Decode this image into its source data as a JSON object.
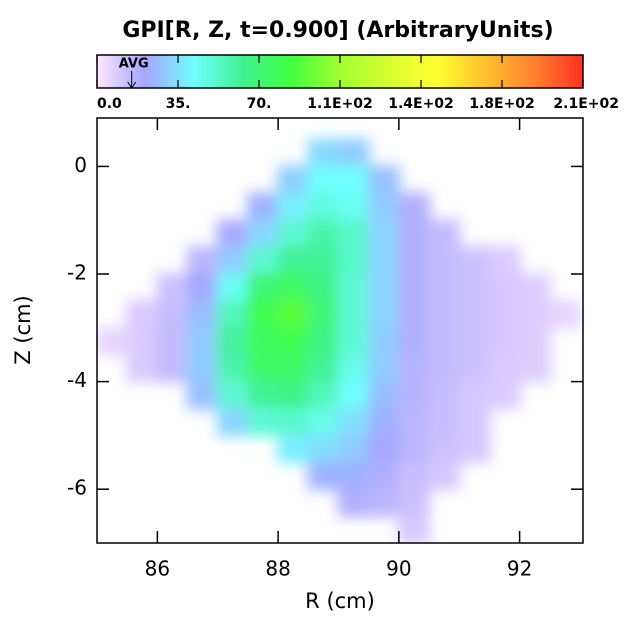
{
  "chart_data": {
    "type": "heatmap",
    "title": "GPI[R, Z, t=0.900] (ArbitraryUnits)",
    "x_label": "R (cm)",
    "y_label": "Z (cm)",
    "xlim": [
      85.0,
      93.05
    ],
    "ylim": [
      -7.0,
      0.9
    ],
    "xticks": [
      86,
      88,
      90,
      92
    ],
    "yticks": [
      0,
      -2,
      -4,
      -6
    ],
    "x": [
      85.25,
      85.75,
      86.25,
      86.75,
      87.25,
      87.75,
      88.25,
      88.75,
      89.25,
      89.75,
      90.25,
      90.75,
      91.25,
      91.75,
      92.25,
      92.75
    ],
    "y": [
      0.25,
      -0.25,
      -0.75,
      -1.25,
      -1.75,
      -2.25,
      -2.75,
      -3.25,
      -3.75,
      -4.25,
      -4.75,
      -5.25,
      -5.75,
      -6.25,
      -6.75
    ],
    "z": [
      [
        null,
        null,
        null,
        null,
        null,
        null,
        null,
        33,
        30,
        null,
        null,
        null,
        null,
        null,
        null,
        null
      ],
      [
        null,
        null,
        null,
        null,
        null,
        null,
        30,
        42,
        42,
        27,
        null,
        null,
        null,
        null,
        null,
        null
      ],
      [
        null,
        null,
        null,
        null,
        null,
        24,
        38,
        48,
        44,
        30,
        18,
        null,
        null,
        null,
        null,
        null
      ],
      [
        null,
        null,
        null,
        null,
        20,
        32,
        50,
        58,
        52,
        32,
        18,
        14,
        null,
        null,
        null,
        null
      ],
      [
        null,
        null,
        null,
        16,
        30,
        50,
        62,
        62,
        52,
        32,
        18,
        14,
        12,
        9,
        null,
        null
      ],
      [
        null,
        null,
        12,
        21,
        44,
        70,
        76,
        66,
        50,
        32,
        18,
        14,
        12,
        10,
        8,
        null
      ],
      [
        null,
        9,
        13,
        27,
        55,
        80,
        90,
        70,
        50,
        32,
        18,
        14,
        12,
        10,
        8,
        6
      ],
      [
        6,
        9,
        14,
        30,
        60,
        76,
        80,
        66,
        50,
        30,
        18,
        14,
        12,
        10,
        8,
        null
      ],
      [
        null,
        9,
        14,
        30,
        58,
        74,
        74,
        62,
        46,
        30,
        17,
        14,
        12,
        9,
        8,
        null
      ],
      [
        null,
        null,
        null,
        27,
        50,
        62,
        66,
        55,
        42,
        27,
        17,
        13,
        10,
        9,
        null,
        null
      ],
      [
        null,
        null,
        null,
        null,
        32,
        50,
        52,
        46,
        35,
        24,
        16,
        13,
        10,
        null,
        null,
        null
      ],
      [
        null,
        null,
        null,
        null,
        null,
        null,
        38,
        35,
        30,
        21,
        16,
        12,
        10,
        null,
        null,
        null
      ],
      [
        null,
        null,
        null,
        null,
        null,
        null,
        null,
        24,
        24,
        18,
        13,
        10,
        null,
        null,
        null,
        null
      ],
      [
        null,
        null,
        null,
        null,
        null,
        null,
        null,
        null,
        18,
        16,
        12,
        null,
        null,
        null,
        null,
        null
      ],
      [
        null,
        null,
        null,
        null,
        null,
        null,
        null,
        null,
        null,
        null,
        10,
        null,
        null,
        null,
        null,
        null
      ]
    ],
    "clim": [
      0,
      210
    ],
    "cticks": [
      0,
      35,
      70,
      {
        "value": 105,
        "label": "1.1E+02"
      },
      {
        "value": 140,
        "label": "1.4E+02"
      },
      {
        "value": 175,
        "label": "1.8E+02"
      },
      {
        "value": 210,
        "label": "2.1E+02"
      }
    ],
    "ctick_labels": [
      "0.0",
      "35.",
      "70."
    ],
    "colormap": [
      "#ffe6ff",
      "#a6a6ff",
      "#70ffff",
      "#40f090",
      "#40ff40",
      "#a0ff30",
      "#d8ff30",
      "#ffff30",
      "#ffc030",
      "#ff8030",
      "#ff3020"
    ],
    "avg": {
      "label": "AVG",
      "value": 15
    }
  }
}
